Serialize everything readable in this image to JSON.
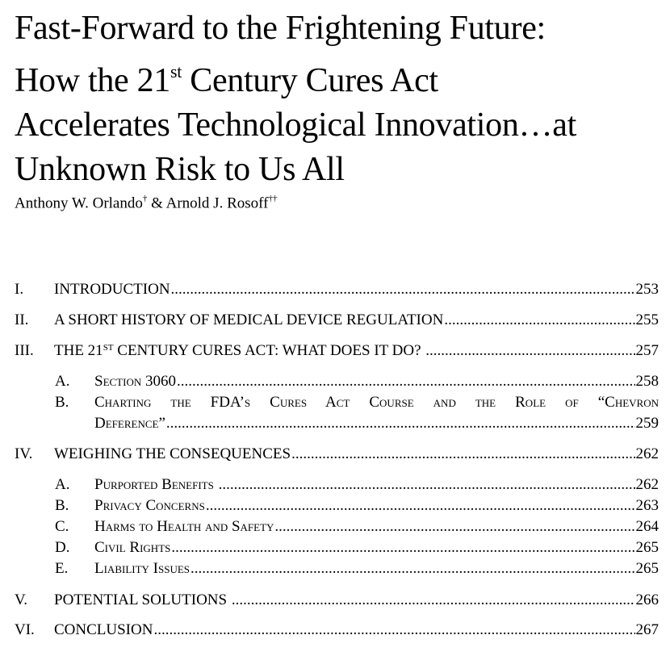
{
  "title": {
    "line1": "Fast-Forward to the Frightening Future:",
    "line2_before": "How the 21",
    "line2_sup": "st",
    "line2_after": " Century Cures Act",
    "line3": "Accelerates Technological Innovation…at",
    "line4": "Unknown Risk to Us All"
  },
  "authors": {
    "author1": "Anthony W. Orlando",
    "author1_mark": "†",
    "separator": " & ",
    "author2": "Arnold J. Rosoff",
    "author2_mark": "††"
  },
  "toc": {
    "i": {
      "num": "I.",
      "label": "INTRODUCTION",
      "page": "253"
    },
    "ii": {
      "num": "II.",
      "label": "A SHORT HISTORY OF MEDICAL DEVICE REGULATION",
      "page": "255"
    },
    "iii": {
      "num": "III.",
      "label_before": "THE 21",
      "label_sup": "ST",
      "label_after": " CENTURY CURES ACT: WHAT DOES IT DO? ",
      "page": "257"
    },
    "iii_a": {
      "num": "A.",
      "label": "Section 3060",
      "page": "258"
    },
    "iii_b": {
      "num": "B.",
      "label_line1": "Charting the FDA’s Cures Act Course and the Role of “Chevron",
      "label_line2": "Deference”",
      "page": "259"
    },
    "iv": {
      "num": "IV.",
      "label": "WEIGHING THE CONSEQUENCES",
      "page": "262"
    },
    "iv_a": {
      "num": "A.",
      "label": "Purported Benefits ",
      "page": "262"
    },
    "iv_b": {
      "num": "B.",
      "label": "Privacy Concerns",
      "page": "263"
    },
    "iv_c": {
      "num": "C.",
      "label": "Harms to Health and Safety",
      "page": "264"
    },
    "iv_d": {
      "num": "D.",
      "label": "Civil Rights",
      "page": "265"
    },
    "iv_e": {
      "num": "E.",
      "label": "Liability Issues",
      "page": "265"
    },
    "v": {
      "num": "V.",
      "label": "POTENTIAL SOLUTIONS ",
      "page": "266"
    },
    "vi": {
      "num": "VI.",
      "label": "CONCLUSION",
      "page": "267"
    }
  }
}
